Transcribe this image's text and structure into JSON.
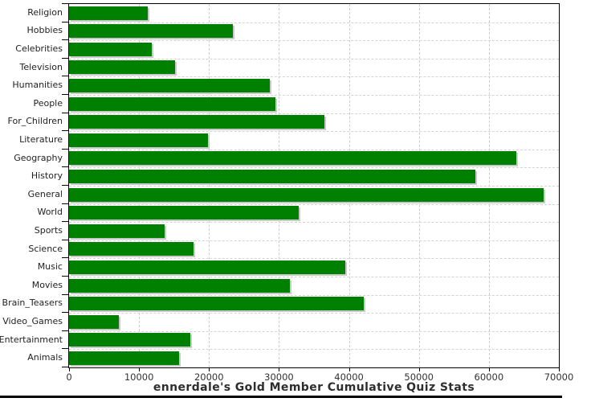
{
  "page": {
    "background_color": "#ffffff",
    "bottom_divider_color": "#000000"
  },
  "chart_data": {
    "type": "bar",
    "orientation": "horizontal",
    "title": "ennerdale's Gold Member Cumulative Quiz Stats",
    "xlabel": "",
    "ylabel": "",
    "categories": [
      "Religion",
      "Hobbies",
      "Celebrities",
      "Television",
      "Humanities",
      "People",
      "For_Children",
      "Literature",
      "Geography",
      "History",
      "General",
      "World",
      "Sports",
      "Science",
      "Music",
      "Movies",
      "Brain_Teasers",
      "Video_Games",
      "Entertainment",
      "Animals"
    ],
    "values": [
      11200,
      23400,
      11800,
      15100,
      28700,
      29500,
      36500,
      19900,
      63900,
      58100,
      67800,
      32800,
      13600,
      17800,
      39500,
      31500,
      42100,
      7100,
      17300,
      15700
    ],
    "xlim": [
      0,
      70000
    ],
    "x_ticks": [
      0,
      10000,
      20000,
      30000,
      40000,
      50000,
      60000,
      70000
    ],
    "x_tick_labels": [
      "0",
      "10000",
      "20000",
      "30000",
      "40000",
      "50000",
      "60000",
      "70000"
    ],
    "grid": "dashed",
    "legend": "none",
    "bar_color": "#008000",
    "bar_shadow_color": "#c9c9c9",
    "gridline_color": "#cccccc",
    "axis_color": "#000000",
    "tick_label_color": "#333333",
    "category_label_color": "#222222",
    "title_color": "#2e2e2e"
  }
}
